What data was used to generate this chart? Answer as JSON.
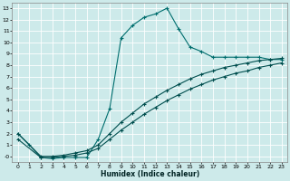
{
  "title": "",
  "xlabel": "Humidex (Indice chaleur)",
  "bg_color": "#cdeaea",
  "line_color1": "#006e6e",
  "line_color2": "#004e4e",
  "ylim": [
    -0.5,
    13.5
  ],
  "xlim": [
    -0.5,
    23.5
  ],
  "yticks": [
    0,
    1,
    2,
    3,
    4,
    5,
    6,
    7,
    8,
    9,
    10,
    11,
    12,
    13
  ],
  "ytick_labels": [
    "-0",
    "1",
    "2",
    "3",
    "4",
    "5",
    "6",
    "7",
    "8",
    "9",
    "10",
    "11",
    "12",
    "13"
  ],
  "xticks": [
    0,
    1,
    2,
    3,
    4,
    5,
    6,
    7,
    8,
    9,
    10,
    11,
    12,
    13,
    14,
    15,
    16,
    17,
    18,
    19,
    20,
    21,
    22,
    23
  ],
  "line1_x": [
    0,
    1,
    2,
    3,
    4,
    5,
    6,
    7,
    8,
    9,
    10,
    11,
    12,
    13,
    14,
    15,
    16,
    17,
    18,
    19,
    20,
    21,
    22,
    23
  ],
  "line1_y": [
    2.0,
    1.0,
    -0.1,
    -0.2,
    -0.1,
    -0.1,
    -0.1,
    1.5,
    4.2,
    10.4,
    11.5,
    12.2,
    12.5,
    13.0,
    11.2,
    9.6,
    9.2,
    8.7,
    8.7,
    8.7,
    8.7,
    8.7,
    8.5,
    8.5
  ],
  "line2_x": [
    0,
    2,
    3,
    4,
    5,
    6,
    7,
    8,
    9,
    10,
    11,
    12,
    13,
    14,
    15,
    16,
    17,
    18,
    19,
    20,
    21,
    22,
    23
  ],
  "line2_y": [
    2.0,
    0.0,
    0.0,
    0.1,
    0.3,
    0.5,
    1.0,
    2.0,
    3.0,
    3.8,
    4.6,
    5.2,
    5.8,
    6.3,
    6.8,
    7.2,
    7.5,
    7.8,
    8.0,
    8.2,
    8.4,
    8.5,
    8.6
  ],
  "line3_x": [
    0,
    2,
    3,
    4,
    5,
    6,
    7,
    8,
    9,
    10,
    11,
    12,
    13,
    14,
    15,
    16,
    17,
    18,
    19,
    20,
    21,
    22,
    23
  ],
  "line3_y": [
    1.5,
    -0.1,
    -0.1,
    -0.0,
    0.1,
    0.3,
    0.7,
    1.5,
    2.3,
    3.0,
    3.7,
    4.3,
    4.9,
    5.4,
    5.9,
    6.3,
    6.7,
    7.0,
    7.3,
    7.5,
    7.8,
    8.0,
    8.2
  ]
}
